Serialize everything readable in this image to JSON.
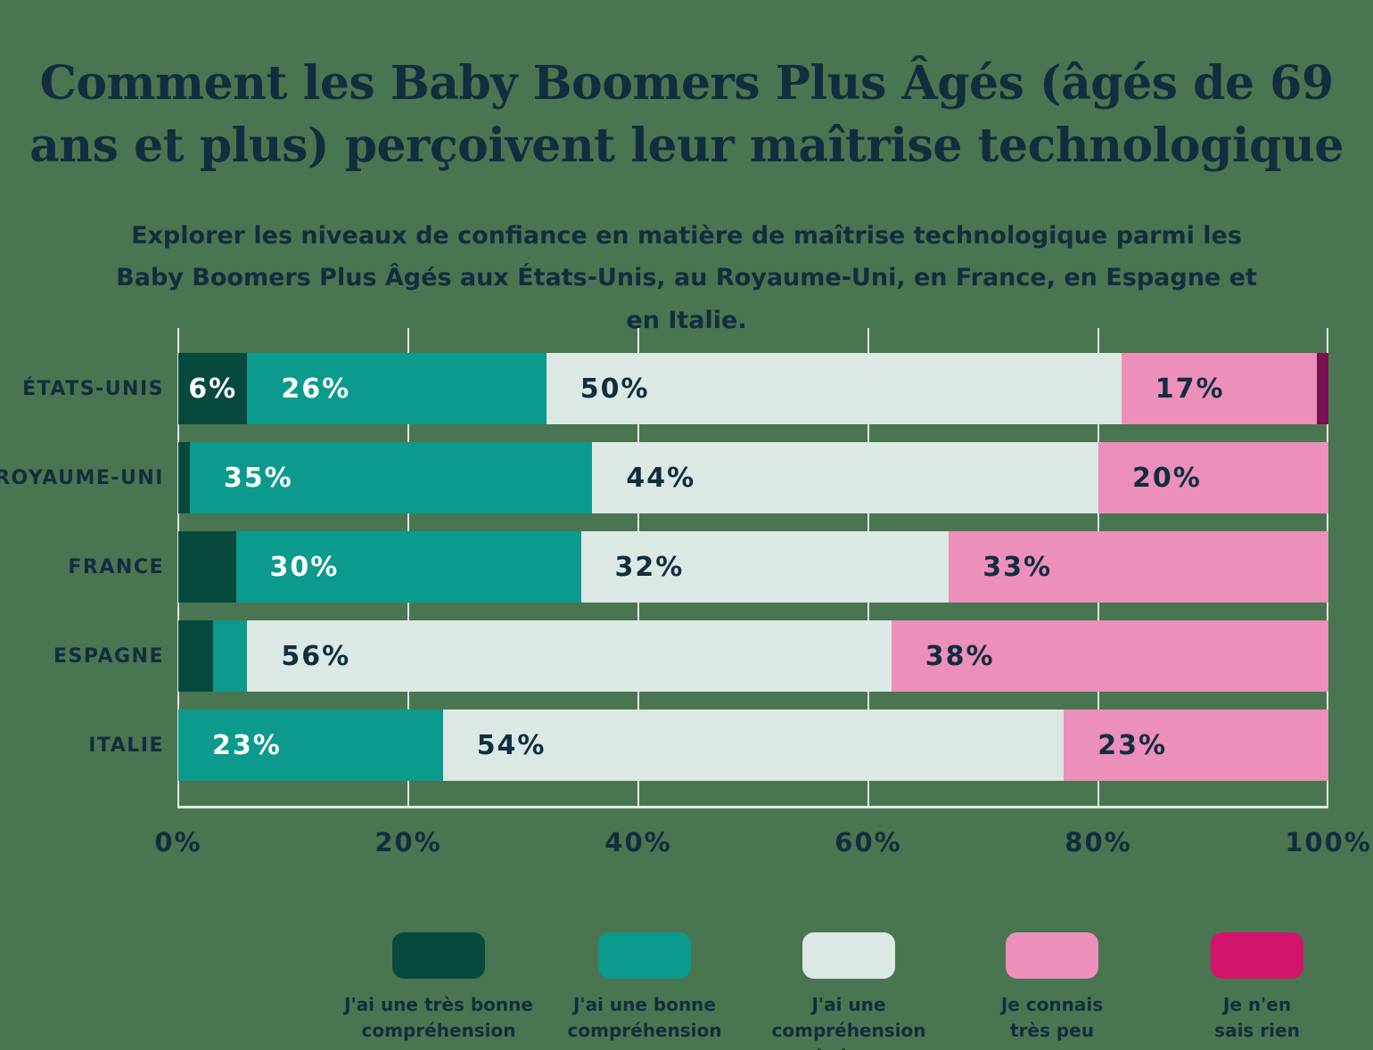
{
  "page": {
    "title": "Comment les Baby Boomers Plus Âgés (âgés de 69 ans et plus) perçoivent leur maîtrise technologique",
    "subtitle": "Explorer les niveaux de confiance en matière de maîtrise technologique parmi les Baby Boomers Plus Âgés aux États-Unis, au Royaume-Uni, en France, en Espagne et en Italie."
  },
  "colors": {
    "background": "#4a7551",
    "text": "#112e3e",
    "grid": "#dfe9e4"
  },
  "chart_data": {
    "type": "bar",
    "orientation": "horizontal-stacked",
    "title": "Comment les Baby Boomers Plus Âgés (âgés de 69 ans et plus) perçoivent leur maîtrise technologique",
    "categories": [
      "ÉTATS-UNIS",
      "ROYAUME-UNI",
      "FRANCE",
      "ESPAGNE",
      "ITALIE"
    ],
    "series": [
      {
        "name": "J'ai une très bonne compréhension",
        "legend_label": "J'ai une très bonne\ncompréhension",
        "color": "#07493c",
        "label_color": "#ffffff",
        "values": [
          6,
          1,
          5,
          3,
          0
        ]
      },
      {
        "name": "J'ai une bonne compréhension",
        "legend_label": "J'ai une bonne\ncompréhension",
        "color": "#0b9a8c",
        "label_color": "#ffffff",
        "values": [
          26,
          35,
          30,
          3,
          23
        ]
      },
      {
        "name": "J'ai une compréhension de base",
        "legend_label": "J'ai une compréhension\nde base",
        "color": "#dce8e4",
        "label_color": "#112e3e",
        "values": [
          50,
          44,
          32,
          56,
          54
        ]
      },
      {
        "name": "Je connais très peu",
        "legend_label": "Je connais\ntrès peu",
        "color": "#ec8fba",
        "label_color": "#112e3e",
        "values": [
          17,
          20,
          33,
          38,
          23
        ]
      },
      {
        "name": "Je n'en sais rien",
        "legend_label": "Je n'en\nsais rien",
        "color": "#d2156b",
        "bar_color": "#7a1051",
        "label_color": "#ffffff",
        "values": [
          1,
          0,
          0,
          0,
          0
        ]
      }
    ],
    "xticks": [
      "0%",
      "20%",
      "40%",
      "60%",
      "80%",
      "100%"
    ],
    "xtick_values": [
      0,
      20,
      40,
      60,
      80,
      100
    ],
    "xlim": [
      0,
      100
    ],
    "label_min_pct": 6,
    "grid": "vertical",
    "legend_position": "bottom"
  }
}
